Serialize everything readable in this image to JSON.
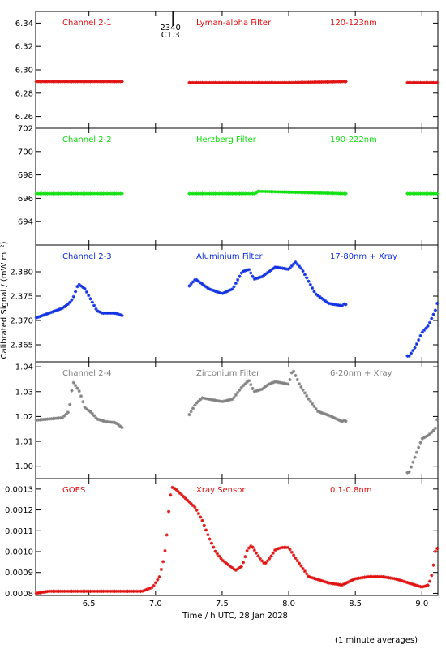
{
  "chart_data": {
    "type": "scatter",
    "marker": "asterisk",
    "xlabel": "Time / h UTC, 28 Jan 2028",
    "ylabel": "Calibrated Signal / (mW m⁻²)",
    "footnote": "(1 minute averages)",
    "xlim": [
      6.1,
      9.12
    ],
    "xticks": [
      6.5,
      7.0,
      7.5,
      8.0,
      8.5,
      9.0
    ],
    "xtick_labels": [
      "6.5",
      "7.0",
      "7.5",
      "8.0",
      "8.5",
      "9.0"
    ],
    "event_marker": {
      "x": 7.13,
      "labels": [
        "2340",
        "C1.3"
      ]
    },
    "panels": [
      {
        "id": "p1",
        "color": "#e01010",
        "labels": [
          "Channel 2-1",
          "Lyman-alpha Filter",
          "120-123nm"
        ],
        "ylim": [
          6.25,
          6.35
        ],
        "yticks": [
          6.26,
          6.28,
          6.3,
          6.32,
          6.34
        ],
        "ytick_labels": [
          "6.26",
          "6.28",
          "6.30",
          "6.32",
          "6.34"
        ],
        "x": [
          6.1,
          6.75,
          7.25,
          7.7,
          8.0,
          8.42,
          8.9,
          9.12
        ],
        "y": [
          6.29,
          6.29,
          6.289,
          6.289,
          6.289,
          6.29,
          6.289,
          6.289
        ],
        "gaps": [
          [
            6.76,
            7.24
          ],
          [
            8.43,
            8.89
          ]
        ]
      },
      {
        "id": "p2",
        "color": "#10e010",
        "labels": [
          "Channel 2-2",
          "Herzberg Filter",
          "190-222nm"
        ],
        "ylim": [
          692,
          702
        ],
        "yticks": [
          694,
          696,
          698,
          700,
          702
        ],
        "ytick_labels": [
          "694",
          "696",
          "698",
          "700",
          "702"
        ],
        "x": [
          6.1,
          6.75,
          7.25,
          7.75,
          7.77,
          8.42,
          8.9,
          9.12
        ],
        "y": [
          696.4,
          696.4,
          696.4,
          696.4,
          696.6,
          696.4,
          696.4,
          696.4
        ],
        "gaps": [
          [
            6.76,
            7.24
          ],
          [
            8.43,
            8.89
          ]
        ]
      },
      {
        "id": "p3",
        "color": "#1030e0",
        "labels": [
          "Channel 2-3",
          "Aluminium Filter",
          "17-80nm + Xray"
        ],
        "ylim": [
          2.3615,
          2.3855
        ],
        "yticks": [
          2.365,
          2.37,
          2.375,
          2.38
        ],
        "ytick_labels": [
          "2.365",
          "2.370",
          "2.375",
          "2.380"
        ],
        "x": [
          6.1,
          6.2,
          6.3,
          6.35,
          6.38,
          6.42,
          6.47,
          6.52,
          6.56,
          6.6,
          6.7,
          6.75,
          7.25,
          7.3,
          7.35,
          7.4,
          7.5,
          7.58,
          7.65,
          7.7,
          7.74,
          7.8,
          7.85,
          7.9,
          8.0,
          8.05,
          8.1,
          8.15,
          8.2,
          8.3,
          8.4,
          8.42,
          8.9,
          8.95,
          9.0,
          9.05,
          9.1,
          9.12
        ],
        "y": [
          2.3705,
          2.3715,
          2.3725,
          2.3735,
          2.3745,
          2.3775,
          2.3765,
          2.374,
          2.372,
          2.3715,
          2.3715,
          2.371,
          2.377,
          2.3785,
          2.3775,
          2.3765,
          2.3755,
          2.3765,
          2.38,
          2.3805,
          2.3785,
          2.379,
          2.38,
          2.381,
          2.3805,
          2.382,
          2.3805,
          2.378,
          2.3755,
          2.3735,
          2.373,
          2.3735,
          2.3625,
          2.3645,
          2.3675,
          2.369,
          2.372,
          2.374
        ],
        "gaps": [
          [
            6.76,
            7.24
          ],
          [
            8.43,
            8.89
          ]
        ]
      },
      {
        "id": "p4",
        "color": "#808080",
        "labels": [
          "Channel 2-4",
          "Zirconium Filter",
          "6-20nm + Xray"
        ],
        "ylim": [
          0.995,
          1.042
        ],
        "yticks": [
          1.0,
          1.01,
          1.02,
          1.03,
          1.04
        ],
        "ytick_labels": [
          "1.00",
          "1.01",
          "1.02",
          "1.03",
          "1.04"
        ],
        "x": [
          6.1,
          6.2,
          6.3,
          6.35,
          6.38,
          6.43,
          6.47,
          6.52,
          6.56,
          6.62,
          6.7,
          6.75,
          7.25,
          7.3,
          7.35,
          7.4,
          7.5,
          7.58,
          7.65,
          7.7,
          7.74,
          7.8,
          7.85,
          7.9,
          8.0,
          8.03,
          8.08,
          8.15,
          8.22,
          8.3,
          8.4,
          8.42,
          8.9,
          8.95,
          9.0,
          9.05,
          9.1,
          9.12
        ],
        "y": [
          1.0185,
          1.019,
          1.0195,
          1.022,
          1.034,
          1.03,
          1.0235,
          1.0215,
          1.019,
          1.018,
          1.0175,
          1.0155,
          1.0205,
          1.025,
          1.0275,
          1.027,
          1.026,
          1.027,
          1.032,
          1.0345,
          1.03,
          1.031,
          1.033,
          1.034,
          1.033,
          1.039,
          1.033,
          1.027,
          1.022,
          1.0205,
          1.018,
          1.0185,
          0.997,
          1.004,
          1.011,
          1.0125,
          1.015,
          1.02
        ],
        "gaps": [
          [
            6.76,
            7.24
          ],
          [
            8.43,
            8.89
          ]
        ]
      },
      {
        "id": "p5",
        "color": "#e01010",
        "labels": [
          "GOES",
          "Xray Sensor",
          "0.1-0.8nm"
        ],
        "ylim": [
          0.00079,
          0.00135
        ],
        "yticks": [
          0.0008,
          0.0009,
          0.001,
          0.0011,
          0.0012,
          0.0013
        ],
        "ytick_labels": [
          "0.0008",
          "0.0009",
          "0.0010",
          "0.0011",
          "0.0012",
          "0.0013"
        ],
        "x": [
          6.1,
          6.2,
          6.3,
          6.5,
          6.7,
          6.9,
          6.98,
          7.03,
          7.06,
          7.08,
          7.1,
          7.12,
          7.15,
          7.2,
          7.25,
          7.3,
          7.35,
          7.4,
          7.45,
          7.5,
          7.56,
          7.6,
          7.65,
          7.69,
          7.72,
          7.78,
          7.82,
          7.86,
          7.9,
          7.95,
          8.0,
          8.05,
          8.15,
          8.3,
          8.4,
          8.5,
          8.6,
          8.7,
          8.8,
          8.9,
          9.0,
          9.05,
          9.08,
          9.1,
          9.12
        ],
        "y": [
          0.0008,
          0.00081,
          0.00081,
          0.00081,
          0.00081,
          0.00081,
          0.00083,
          0.00088,
          0.00096,
          0.00104,
          0.0012,
          0.00131,
          0.0013,
          0.00127,
          0.00124,
          0.00121,
          0.00115,
          0.00107,
          0.001,
          0.00096,
          0.00093,
          0.00091,
          0.00093,
          0.00101,
          0.00103,
          0.00097,
          0.00094,
          0.00097,
          0.00101,
          0.00102,
          0.00102,
          0.00097,
          0.00088,
          0.00085,
          0.00084,
          0.00087,
          0.00088,
          0.00088,
          0.00087,
          0.00085,
          0.00083,
          0.00084,
          0.0009,
          0.001,
          0.00102
        ],
        "gaps": []
      }
    ]
  }
}
